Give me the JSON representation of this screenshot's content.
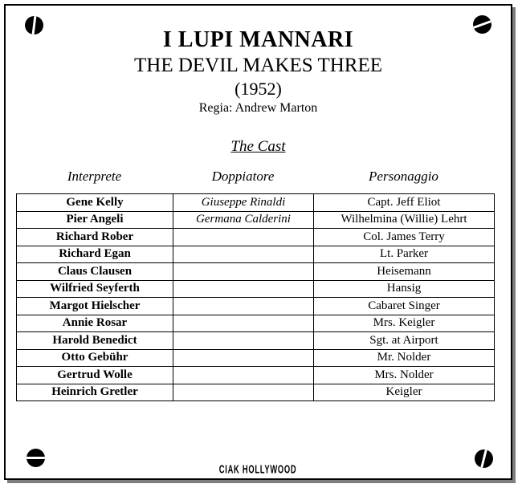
{
  "page": {
    "title_italian": "I LUPI MANNARI",
    "title_english": "THE DEVIL MAKES THREE",
    "year": "(1952)",
    "director": "Regia: Andrew Marton",
    "section_heading": "The Cast",
    "footer_logo": "CIAK HOLLYWOOD"
  },
  "cast_table": {
    "columns": [
      "Interprete",
      "Doppiatore",
      "Personaggio"
    ],
    "rows": [
      {
        "interprete": "Gene Kelly",
        "doppiatore": "Giuseppe Rinaldi",
        "personaggio": "Capt. Jeff Eliot"
      },
      {
        "interprete": "Pier Angeli",
        "doppiatore": "Germana Calderini",
        "personaggio": "Wilhelmina (Willie) Lehrt"
      },
      {
        "interprete": "Richard Rober",
        "doppiatore": "",
        "personaggio": "Col. James Terry"
      },
      {
        "interprete": "Richard Egan",
        "doppiatore": "",
        "personaggio": "Lt. Parker"
      },
      {
        "interprete": "Claus Clausen",
        "doppiatore": "",
        "personaggio": "Heisemann"
      },
      {
        "interprete": "Wilfried Seyferth",
        "doppiatore": "",
        "personaggio": "Hansig"
      },
      {
        "interprete": "Margot Hielscher",
        "doppiatore": "",
        "personaggio": "Cabaret Singer"
      },
      {
        "interprete": "Annie Rosar",
        "doppiatore": "",
        "personaggio": "Mrs. Keigler"
      },
      {
        "interprete": "Harold Benedict",
        "doppiatore": "",
        "personaggio": "Sgt. at Airport"
      },
      {
        "interprete": "Otto Gebühr",
        "doppiatore": "",
        "personaggio": "Mr. Nolder"
      },
      {
        "interprete": "Gertrud Wolle",
        "doppiatore": "",
        "personaggio": "Mrs. Nolder"
      },
      {
        "interprete": "Heinrich Gretler",
        "doppiatore": "",
        "personaggio": "Keigler"
      }
    ]
  },
  "icons": {
    "corners": [
      "screw-icon-top-left",
      "screw-icon-top-right",
      "screw-icon-bottom-left",
      "screw-icon-bottom-right"
    ]
  },
  "colors": {
    "text": "#000000",
    "background": "#ffffff",
    "border": "#000000",
    "shadow": "#7f7f7f"
  }
}
